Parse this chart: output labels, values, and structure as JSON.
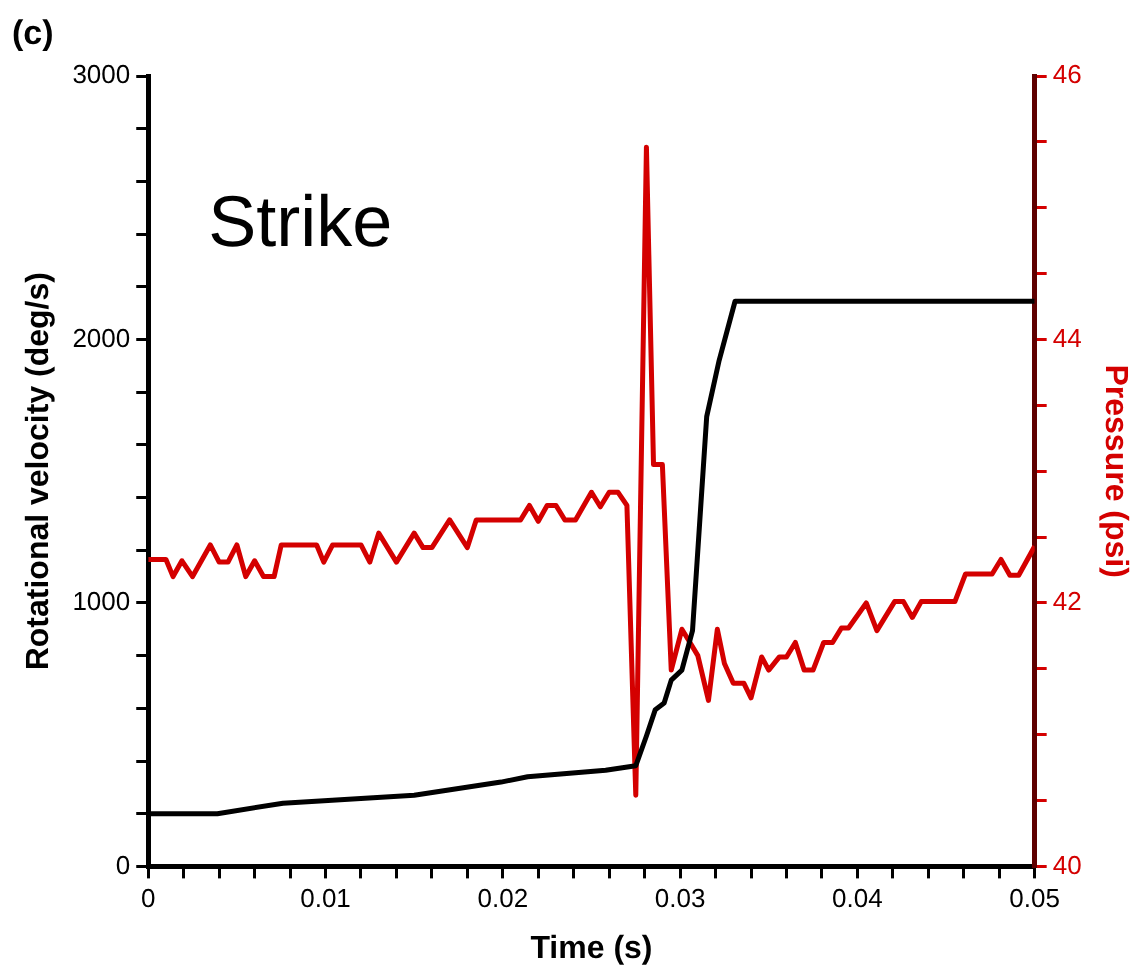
{
  "chart_data": {
    "type": "line",
    "xlabel": "Time (s)",
    "ylabel": "Rotational velocity (deg/s)",
    "y2label": "Pressure (psi)",
    "annotations": [
      "(c)",
      "Strike"
    ],
    "xlim": [
      0,
      0.05
    ],
    "xticks": [
      0,
      {
        "value": 0.002,
        "label": null
      },
      {
        "value": 0.004,
        "label": null
      },
      {
        "value": 0.006,
        "label": null
      },
      {
        "value": 0.008,
        "label": null
      },
      0.01,
      {
        "value": 0.012,
        "label": null
      },
      {
        "value": 0.014,
        "label": null
      },
      {
        "value": 0.016,
        "label": null
      },
      {
        "value": 0.018,
        "label": null
      },
      0.02,
      {
        "value": 0.022,
        "label": null
      },
      {
        "value": 0.024,
        "label": null
      },
      {
        "value": 0.026,
        "label": null
      },
      {
        "value": 0.028,
        "label": null
      },
      0.03,
      {
        "value": 0.032,
        "label": null
      },
      {
        "value": 0.034,
        "label": null
      },
      {
        "value": 0.036,
        "label": null
      },
      {
        "value": 0.038,
        "label": null
      },
      0.04,
      {
        "value": 0.042,
        "label": null
      },
      {
        "value": 0.044,
        "label": null
      },
      {
        "value": 0.046,
        "label": null
      },
      {
        "value": 0.048,
        "label": null
      },
      0.05
    ],
    "ylim": [
      0,
      3000
    ],
    "yticks": [
      0,
      {
        "value": 200,
        "label": null
      },
      {
        "value": 400,
        "label": null
      },
      {
        "value": 600,
        "label": null
      },
      {
        "value": 800,
        "label": null
      },
      1000,
      {
        "value": 1200,
        "label": null
      },
      {
        "value": 1400,
        "label": null
      },
      {
        "value": 1600,
        "label": null
      },
      {
        "value": 1800,
        "label": null
      },
      2000,
      {
        "value": 2200,
        "label": null
      },
      {
        "value": 2400,
        "label": null
      },
      {
        "value": 2600,
        "label": null
      },
      {
        "value": 2800,
        "label": null
      },
      3000
    ],
    "y2lim": [
      40,
      46
    ],
    "y2ticks": [
      40,
      {
        "value": 40.5,
        "label": null
      },
      {
        "value": 41,
        "label": null
      },
      {
        "value": 41.5,
        "label": null
      },
      42,
      {
        "value": 42.5,
        "label": null
      },
      {
        "value": 43,
        "label": null
      },
      {
        "value": 43.5,
        "label": null
      },
      44,
      {
        "value": 44.5,
        "label": null
      },
      {
        "value": 45,
        "label": null
      },
      {
        "value": 45.5,
        "label": null
      },
      46
    ],
    "grid": false,
    "legend": false,
    "marker": "none",
    "line_style": "solid",
    "series": [
      {
        "color": "#000000",
        "x": [
          0,
          0.0039,
          0.0076,
          0.015,
          0.0199,
          0.0214,
          0.0258,
          0.0275,
          0.0281,
          0.0286,
          0.0291,
          0.0295,
          0.0301,
          0.0307,
          0.0315,
          0.0322,
          0.0331,
          0.05
        ],
        "values": [
          200,
          200,
          240,
          270,
          320,
          340,
          365,
          382,
          495,
          595,
          620,
          707,
          745,
          895,
          1707,
          1920,
          2145,
          2145
        ]
      },
      {
        "color": "#d40000",
        "axis": "y2",
        "x": [
          0,
          0.001,
          0.0014,
          0.0019,
          0.0025,
          0.0035,
          0.004,
          0.0045,
          0.005,
          0.0055,
          0.006,
          0.0065,
          0.0071,
          0.0075,
          0.0095,
          0.0099,
          0.0104,
          0.012,
          0.0125,
          0.013,
          0.014,
          0.015,
          0.0155,
          0.016,
          0.017,
          0.018,
          0.0185,
          0.021,
          0.0215,
          0.022,
          0.0225,
          0.023,
          0.0235,
          0.0241,
          0.025,
          0.0255,
          0.026,
          0.0265,
          0.027,
          0.0275,
          0.0281,
          0.0285,
          0.029,
          0.0295,
          0.0301,
          0.0306,
          0.031,
          0.0316,
          0.0321,
          0.0325,
          0.033,
          0.0336,
          0.034,
          0.0346,
          0.035,
          0.0356,
          0.036,
          0.0365,
          0.037,
          0.0375,
          0.0381,
          0.0386,
          0.0391,
          0.0395,
          0.0405,
          0.0411,
          0.0421,
          0.0426,
          0.0431,
          0.0436,
          0.0455,
          0.0461,
          0.0476,
          0.0481,
          0.0486,
          0.0491,
          0.05
        ],
        "values": [
          42.33,
          42.33,
          42.2,
          42.32,
          42.2,
          42.44,
          42.31,
          42.31,
          42.44,
          42.2,
          42.32,
          42.2,
          42.2,
          42.44,
          42.44,
          42.31,
          42.44,
          42.44,
          42.31,
          42.53,
          42.31,
          42.53,
          42.42,
          42.42,
          42.63,
          42.42,
          42.63,
          42.63,
          42.74,
          42.62,
          42.74,
          42.74,
          42.63,
          42.63,
          42.84,
          42.73,
          42.84,
          42.84,
          42.74,
          40.54,
          45.46,
          43.05,
          43.05,
          41.49,
          41.8,
          41.69,
          41.6,
          41.26,
          41.8,
          41.54,
          41.39,
          41.39,
          41.28,
          41.59,
          41.49,
          41.59,
          41.59,
          41.7,
          41.49,
          41.49,
          41.7,
          41.7,
          41.81,
          41.81,
          42,
          41.79,
          42.01,
          42.01,
          41.89,
          42.01,
          42.01,
          42.22,
          42.22,
          42.33,
          42.21,
          42.21,
          42.43
        ]
      }
    ]
  }
}
